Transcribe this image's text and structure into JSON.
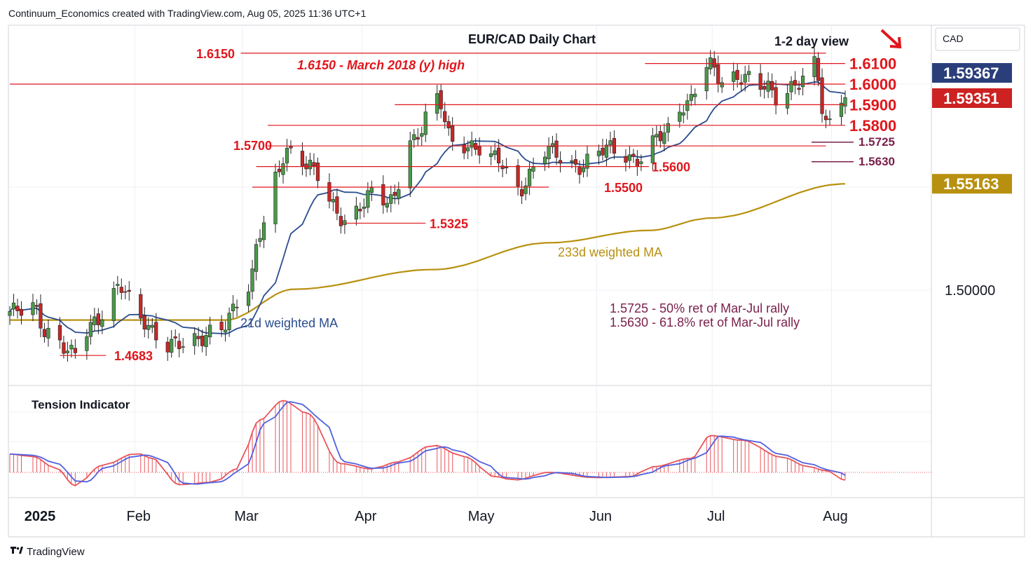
{
  "header": {
    "caption": "Continuum_Economics created with TradingView.com, Aug 05, 2025 11:36 UTC+1"
  },
  "footer": {
    "brand": "TradingView",
    "logo": "tradingview-logo"
  },
  "colors": {
    "up_candle": "#4a9a4a",
    "down_candle": "#c62828",
    "ma21": "#2a4d8f",
    "ma233": "#b8900f",
    "level": "#e0161c",
    "retracement": "#7a1f4a",
    "tension_fill": "#e8555b",
    "tension_signal": "#5060e0"
  },
  "chart_data": [
    {
      "type": "candlestick",
      "title": "EUR/CAD Daily Chart",
      "view_label": "1-2 day view",
      "view_arrow": "down-right-arrow-icon",
      "currency_label": "CAD",
      "x_ticks": [
        "2025",
        "Feb",
        "Mar",
        "Apr",
        "May",
        "Jun",
        "Jul",
        "Aug"
      ],
      "y_ticks": [
        "1.50000"
      ],
      "ylim": [
        1.45,
        1.635
      ],
      "price_badges": [
        {
          "label": "1.59367",
          "value": 1.59367,
          "bg": "#2a3f7a"
        },
        {
          "label": "1.59351",
          "value": 1.59351,
          "bg": "#cc2222"
        },
        {
          "label": "1.55163",
          "value": 1.55163,
          "bg": "#b8900f"
        }
      ],
      "levels": [
        {
          "label": "1.6150",
          "value": 1.615,
          "from": "2025-03-01",
          "to": "2025-07-31"
        },
        {
          "label": "1.6100",
          "value": 1.61,
          "from": "2025-06-14",
          "to": "2025-08-05"
        },
        {
          "label": "1.6000",
          "value": 1.6,
          "from": "2024-12-31",
          "to": "2025-08-05"
        },
        {
          "label": "1.5900",
          "value": 1.59,
          "from": "2025-04-10",
          "to": "2025-08-05"
        },
        {
          "label": "1.5800",
          "value": 1.58,
          "from": "2025-03-08",
          "to": "2025-08-05"
        },
        {
          "label": "1.5700",
          "value": 1.57,
          "from": "2025-03-08",
          "to": "2025-07-31"
        },
        {
          "label": "1.5600",
          "value": 1.56,
          "from": "2025-03-05",
          "to": "2025-06-15"
        },
        {
          "label": "1.5500",
          "value": 1.55,
          "from": "2025-03-04",
          "to": "2025-05-20"
        },
        {
          "label": "1.5325",
          "value": 1.5325,
          "from": "2025-03-28",
          "to": "2025-04-18"
        },
        {
          "label": "1.4683",
          "value": 1.4683,
          "from": "2025-01-13",
          "to": "2025-01-25"
        }
      ],
      "retracements": [
        {
          "label": "1.5725",
          "value": 1.5725
        },
        {
          "label": "1.5630",
          "value": 1.563
        }
      ],
      "annotations": [
        "1.6150 - March 2018 (y) high",
        "1.5725 - 50% ret of Mar-Jul rally",
        "1.5630 - 61.8% ret of Mar-Jul rally",
        "233d weighted MA",
        "21d weighted MA"
      ],
      "anchors": [
        {
          "date": "2024-12-31",
          "price": 1.488
        },
        {
          "date": "2025-01-06",
          "price": 1.493
        },
        {
          "date": "2025-01-10",
          "price": 1.479
        },
        {
          "date": "2025-01-16",
          "price": 1.4683
        },
        {
          "date": "2025-01-22",
          "price": 1.486
        },
        {
          "date": "2025-01-29",
          "price": 1.5
        },
        {
          "date": "2025-02-03",
          "price": 1.487
        },
        {
          "date": "2025-02-10",
          "price": 1.472
        },
        {
          "date": "2025-02-24",
          "price": 1.481
        },
        {
          "date": "2025-03-03",
          "price": 1.502
        },
        {
          "date": "2025-03-06",
          "price": 1.53
        },
        {
          "date": "2025-03-10",
          "price": 1.553
        },
        {
          "date": "2025-03-13",
          "price": 1.566
        },
        {
          "date": "2025-03-18",
          "price": 1.563
        },
        {
          "date": "2025-03-28",
          "price": 1.5325
        },
        {
          "date": "2025-04-04",
          "price": 1.548
        },
        {
          "date": "2025-04-09",
          "price": 1.541
        },
        {
          "date": "2025-04-14",
          "price": 1.573
        },
        {
          "date": "2025-04-21",
          "price": 1.592
        },
        {
          "date": "2025-04-25",
          "price": 1.571
        },
        {
          "date": "2025-04-30",
          "price": 1.571
        },
        {
          "date": "2025-05-06",
          "price": 1.563
        },
        {
          "date": "2025-05-12",
          "price": 1.55
        },
        {
          "date": "2025-05-19",
          "price": 1.567
        },
        {
          "date": "2025-05-27",
          "price": 1.561
        },
        {
          "date": "2025-06-05",
          "price": 1.568
        },
        {
          "date": "2025-06-13",
          "price": 1.564
        },
        {
          "date": "2025-06-18",
          "price": 1.574
        },
        {
          "date": "2025-06-25",
          "price": 1.592
        },
        {
          "date": "2025-06-30",
          "price": 1.609
        },
        {
          "date": "2025-07-04",
          "price": 1.601
        },
        {
          "date": "2025-07-09",
          "price": 1.605
        },
        {
          "date": "2025-07-15",
          "price": 1.598
        },
        {
          "date": "2025-07-18",
          "price": 1.593
        },
        {
          "date": "2025-07-24",
          "price": 1.602
        },
        {
          "date": "2025-07-28",
          "price": 1.609
        },
        {
          "date": "2025-07-31",
          "price": 1.579
        },
        {
          "date": "2025-08-01",
          "price": 1.581
        },
        {
          "date": "2025-08-04",
          "price": 1.595
        },
        {
          "date": "2025-08-05",
          "price": 1.5935
        }
      ],
      "ma233": [
        {
          "date": "2024-12-31",
          "price": 1.4855
        },
        {
          "date": "2025-02-25",
          "price": 1.4855
        },
        {
          "date": "2025-03-15",
          "price": 1.5005
        },
        {
          "date": "2025-04-20",
          "price": 1.51
        },
        {
          "date": "2025-05-20",
          "price": 1.523
        },
        {
          "date": "2025-06-15",
          "price": 1.529
        },
        {
          "date": "2025-07-01",
          "price": 1.535
        },
        {
          "date": "2025-08-05",
          "price": 1.5516
        }
      ]
    },
    {
      "type": "line",
      "title": "Tension Indicator",
      "series": [],
      "main": [
        {
          "date": "2024-12-31",
          "value": 0.52
        },
        {
          "date": "2025-01-06",
          "value": 0.45
        },
        {
          "date": "2025-01-12",
          "value": 0.12
        },
        {
          "date": "2025-01-17",
          "value": -0.38
        },
        {
          "date": "2025-01-24",
          "value": 0.2
        },
        {
          "date": "2025-02-02",
          "value": 0.55
        },
        {
          "date": "2025-02-06",
          "value": 0.4
        },
        {
          "date": "2025-02-13",
          "value": -0.35
        },
        {
          "date": "2025-02-22",
          "value": -0.28
        },
        {
          "date": "2025-02-28",
          "value": 0.1
        },
        {
          "date": "2025-03-06",
          "value": 1.5
        },
        {
          "date": "2025-03-12",
          "value": 2.05
        },
        {
          "date": "2025-03-18",
          "value": 1.7
        },
        {
          "date": "2025-03-27",
          "value": 0.25
        },
        {
          "date": "2025-04-04",
          "value": 0.1
        },
        {
          "date": "2025-04-11",
          "value": 0.3
        },
        {
          "date": "2025-04-20",
          "value": 0.78
        },
        {
          "date": "2025-04-28",
          "value": 0.45
        },
        {
          "date": "2025-05-06",
          "value": -0.12
        },
        {
          "date": "2025-05-11",
          "value": -0.22
        },
        {
          "date": "2025-05-20",
          "value": 0.0
        },
        {
          "date": "2025-06-01",
          "value": -0.15
        },
        {
          "date": "2025-06-10",
          "value": -0.12
        },
        {
          "date": "2025-06-16",
          "value": 0.16
        },
        {
          "date": "2025-06-26",
          "value": 0.4
        },
        {
          "date": "2025-07-01",
          "value": 1.05
        },
        {
          "date": "2025-07-09",
          "value": 0.92
        },
        {
          "date": "2025-07-20",
          "value": 0.42
        },
        {
          "date": "2025-07-26",
          "value": 0.18
        },
        {
          "date": "2025-07-31",
          "value": 0.05
        },
        {
          "date": "2025-08-05",
          "value": -0.22
        }
      ]
    }
  ]
}
